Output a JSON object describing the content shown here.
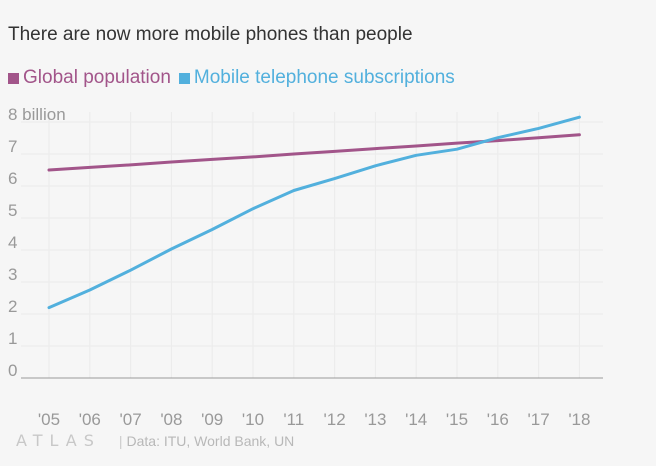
{
  "chart_data": {
    "type": "line",
    "title": "There are now more mobile phones than people",
    "x": [
      "'05",
      "'06",
      "'07",
      "'08",
      "'09",
      "'10",
      "'11",
      "'12",
      "'13",
      "'14",
      "'15",
      "'16",
      "'17",
      "'18"
    ],
    "series": [
      {
        "name": "Global population",
        "color": "#a2558a",
        "values": [
          6.5,
          6.58,
          6.66,
          6.75,
          6.83,
          6.91,
          7.0,
          7.08,
          7.17,
          7.25,
          7.34,
          7.42,
          7.51,
          7.6
        ]
      },
      {
        "name": "Mobile telephone subscriptions",
        "color": "#52b0dd",
        "values": [
          2.2,
          2.75,
          3.37,
          4.03,
          4.64,
          5.29,
          5.86,
          6.23,
          6.63,
          6.96,
          7.15,
          7.51,
          7.8,
          8.15
        ]
      }
    ],
    "yticks": [
      0,
      1,
      2,
      3,
      4,
      5,
      6,
      7,
      8
    ],
    "ytick_labels": [
      "0",
      "1",
      "2",
      "3",
      "4",
      "5",
      "6",
      "7",
      "8 billion"
    ],
    "ylim": [
      0,
      8
    ],
    "xlabel": "",
    "ylabel": "",
    "grid": true,
    "legend_position": "top-left"
  },
  "footer": {
    "logo": "ATLAS",
    "source": "Data: ITU, World Bank, UN"
  }
}
